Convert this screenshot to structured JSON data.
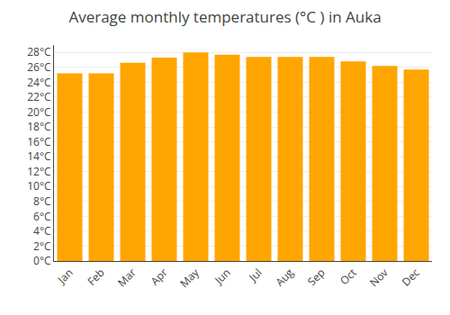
{
  "chart_data": {
    "type": "bar",
    "title": "Average monthly temperatures (°C ) in Auka",
    "categories": [
      "Jan",
      "Feb",
      "Mar",
      "Apr",
      "May",
      "Jun",
      "Jul",
      "Aug",
      "Sep",
      "Oct",
      "Nov",
      "Dec"
    ],
    "values": [
      25.2,
      25.2,
      26.6,
      27.3,
      28.0,
      27.7,
      27.4,
      27.4,
      27.4,
      26.8,
      26.2,
      25.7
    ],
    "color": "#FFA500",
    "ylim": [
      0,
      29
    ],
    "yticks": [
      {
        "value": 0,
        "label": "0°C"
      },
      {
        "value": 2,
        "label": "2°C"
      },
      {
        "value": 4,
        "label": "4°C"
      },
      {
        "value": 6,
        "label": "6°C"
      },
      {
        "value": 8,
        "label": "8°C"
      },
      {
        "value": 10,
        "label": "10°C"
      },
      {
        "value": 12,
        "label": "12°C"
      },
      {
        "value": 14,
        "label": "14°C"
      },
      {
        "value": 16,
        "label": "16°C"
      },
      {
        "value": 18,
        "label": "18°C"
      },
      {
        "value": 20,
        "label": "20°C"
      },
      {
        "value": 22,
        "label": "22°C"
      },
      {
        "value": 24,
        "label": "24°C"
      },
      {
        "value": 26,
        "label": "26°C"
      },
      {
        "value": 28,
        "label": "28°C"
      }
    ],
    "grid": true
  }
}
